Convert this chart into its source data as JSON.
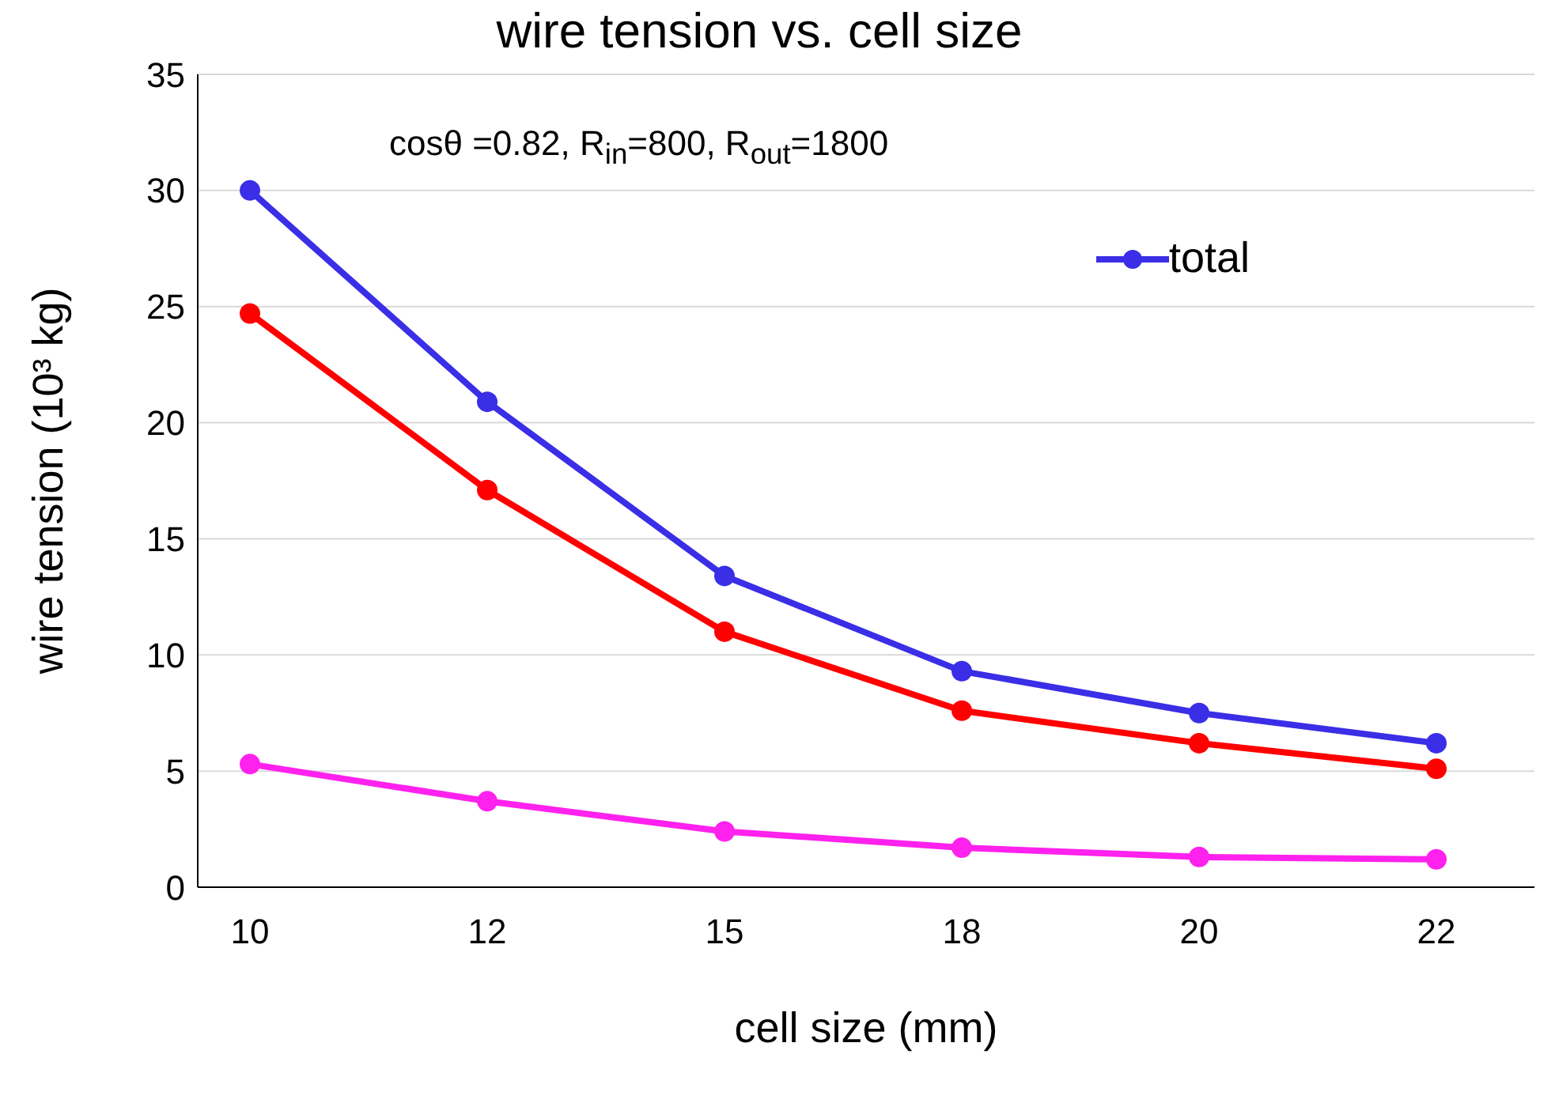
{
  "chart_data": {
    "type": "line",
    "title": "wire tension vs. cell size",
    "xlabel": "cell size (mm)",
    "ylabel": "wire tension (10³ kg)",
    "annotations": [
      "cosθ =0.82,  R$_{in}$=800, R$_{out}$=1800"
    ],
    "categories": [
      "10",
      "12",
      "15",
      "18",
      "20",
      "22"
    ],
    "series": [
      {
        "name": "total",
        "color": "#3a2ee6",
        "values": [
          30,
          20.9,
          13.4,
          9.3,
          7.5,
          6.2
        ]
      },
      {
        "color": "#ff0000",
        "values": [
          24.7,
          17.1,
          11.0,
          7.6,
          6.2,
          5.1
        ]
      },
      {
        "color": "#ff21ee",
        "values": [
          5.3,
          3.7,
          2.4,
          1.7,
          1.3,
          1.2
        ]
      }
    ],
    "ylim": [
      0,
      35
    ],
    "yticks": [
      0,
      5,
      10,
      15,
      20,
      25,
      30,
      35
    ],
    "grid": "y",
    "legend": "top right",
    "marker": "circle",
    "line_style": "solid"
  }
}
